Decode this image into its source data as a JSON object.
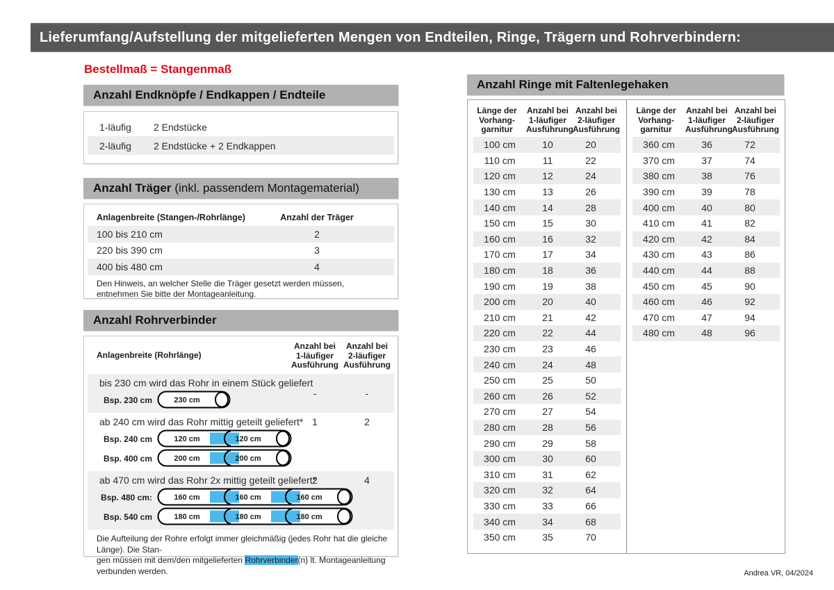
{
  "page": {
    "title_bar": "Lieferumfang/Aufstellung der mitgelieferten Mengen von Endteilen, Ringe, Trägern und Rohrverbindern:",
    "subtitle": "Bestellmaß = Stangenmaß",
    "footer": "Andrea VR, 04/2024"
  },
  "colors": {
    "title_bar_bg": "#575756",
    "section_header_bg": "#b1b1b1",
    "stripe_bg": "#ededed",
    "accent_red": "#e30613",
    "accent_blue": "#4db9ea"
  },
  "endpieces": {
    "title": "Anzahl Endknöpfe / Endkappen / Endteile",
    "rows": [
      [
        "1-läufig",
        "2 Endstücke"
      ],
      [
        "2-läufig",
        "2 Endstücke + 2 Endkappen"
      ]
    ]
  },
  "traeger": {
    "title_bold": "Anzahl Träger",
    "title_light": "(inkl. passendem Montagematerial)",
    "col1": "Anlagenbreite (Stangen-/Rohrlänge)",
    "col2": "Anzahl der Träger",
    "rows": [
      [
        "100 bis 210 cm",
        "2"
      ],
      [
        "220 bis 390 cm",
        "3"
      ],
      [
        "400 bis 480 cm",
        "4"
      ]
    ],
    "note": "Den Hinweis, an welcher Stelle die Träger gesetzt werden müssen, entnehmen Sie bitte der Montageanleitung."
  },
  "rohrverbinder": {
    "title": "Anzahl Rohrverbinder",
    "col1": "Anlagenbreite (Rohrlänge)",
    "col2_lines": [
      "Anzahl bei",
      "1-läufiger",
      "Ausführung"
    ],
    "col3_lines": [
      "Anzahl bei",
      "2-läufiger",
      "Ausführung"
    ],
    "rows": [
      {
        "text": "bis 230 cm wird das Rohr in einem Stück geliefert",
        "v1": "-",
        "v2": "-",
        "examples": [
          {
            "label": "Bsp. 230 cm",
            "segments": [
              "230 cm"
            ]
          }
        ]
      },
      {
        "text": "ab 240 cm wird das Rohr mittig geteilt geliefert*",
        "v1": "1",
        "v2": "2",
        "examples": [
          {
            "label": "Bsp. 240 cm",
            "segments": [
              "120 cm",
              "120 cm"
            ]
          },
          {
            "label": "Bsp. 400 cm",
            "segments": [
              "200 cm",
              "200 cm"
            ]
          }
        ]
      },
      {
        "text": "ab 470 cm wird das Rohr 2x mittig geteilt geliefert*",
        "v1": "2",
        "v2": "4",
        "examples": [
          {
            "label": "Bsp. 480 cm:",
            "segments": [
              "160 cm",
              "160 cm",
              "160 cm"
            ]
          },
          {
            "label": "Bsp. 540 cm",
            "segments": [
              "180 cm",
              "180 cm",
              "180 cm"
            ]
          }
        ]
      }
    ],
    "footnote_line1": "Die Aufteilung der Rohre erfolgt immer gleichmäßig (jedes Rohr hat die gleiche Länge). Die Stan-",
    "footnote_line2_pre": "gen müssen mit dem/den mitgelieferten ",
    "footnote_highlight": "Rohrverbinder",
    "footnote_line2_post": "(n) lt. Montageanleitung verbunden werden."
  },
  "rings": {
    "title": "Anzahl Ringe mit Faltenlegehaken",
    "col_headers": [
      [
        "Länge der",
        "Vorhang-",
        "garnitur"
      ],
      [
        "Anzahl bei",
        "1-läufiger",
        "Ausführung"
      ],
      [
        "Anzahl bei",
        "2-läufiger",
        "Ausführung"
      ]
    ],
    "table_left": [
      [
        "100 cm",
        "10",
        "20"
      ],
      [
        "110 cm",
        "11",
        "22"
      ],
      [
        "120 cm",
        "12",
        "24"
      ],
      [
        "130 cm",
        "13",
        "26"
      ],
      [
        "140 cm",
        "14",
        "28"
      ],
      [
        "150 cm",
        "15",
        "30"
      ],
      [
        "160 cm",
        "16",
        "32"
      ],
      [
        "170 cm",
        "17",
        "34"
      ],
      [
        "180 cm",
        "18",
        "36"
      ],
      [
        "190 cm",
        "19",
        "38"
      ],
      [
        "200 cm",
        "20",
        "40"
      ],
      [
        "210 cm",
        "21",
        "42"
      ],
      [
        "220 cm",
        "22",
        "44"
      ],
      [
        "230 cm",
        "23",
        "46"
      ],
      [
        "240 cm",
        "24",
        "48"
      ],
      [
        "250 cm",
        "25",
        "50"
      ],
      [
        "260 cm",
        "26",
        "52"
      ],
      [
        "270 cm",
        "27",
        "54"
      ],
      [
        "280 cm",
        "28",
        "56"
      ],
      [
        "290 cm",
        "29",
        "58"
      ],
      [
        "300 cm",
        "30",
        "60"
      ],
      [
        "310 cm",
        "31",
        "62"
      ],
      [
        "320 cm",
        "32",
        "64"
      ],
      [
        "330 cm",
        "33",
        "66"
      ],
      [
        "340 cm",
        "34",
        "68"
      ],
      [
        "350 cm",
        "35",
        "70"
      ]
    ],
    "table_right": [
      [
        "360 cm",
        "36",
        "72"
      ],
      [
        "370 cm",
        "37",
        "74"
      ],
      [
        "380 cm",
        "38",
        "76"
      ],
      [
        "390 cm",
        "39",
        "78"
      ],
      [
        "400 cm",
        "40",
        "80"
      ],
      [
        "410 cm",
        "41",
        "82"
      ],
      [
        "420 cm",
        "42",
        "84"
      ],
      [
        "430 cm",
        "43",
        "86"
      ],
      [
        "440 cm",
        "44",
        "88"
      ],
      [
        "450 cm",
        "45",
        "90"
      ],
      [
        "460 cm",
        "46",
        "92"
      ],
      [
        "470 cm",
        "47",
        "94"
      ],
      [
        "480 cm",
        "48",
        "96"
      ]
    ]
  }
}
